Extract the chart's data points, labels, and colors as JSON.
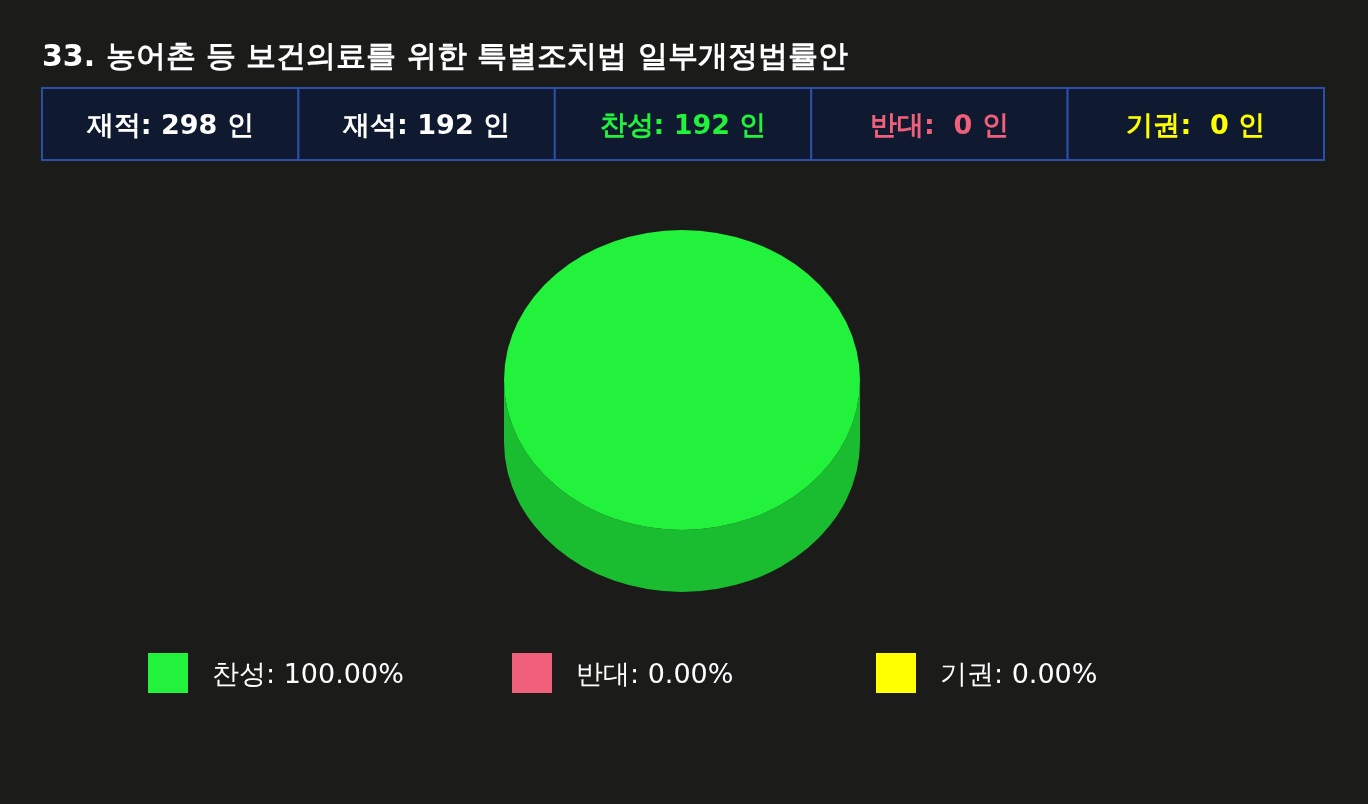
{
  "chart_data": {
    "type": "pie",
    "title": "33. 농어촌 등 보건의료를 위한 특별조치법 일부개정법률안",
    "categories": [
      "찬성",
      "반대",
      "기권"
    ],
    "values": [
      100,
      0,
      0
    ],
    "value_labels": [
      "100.00%",
      "0.00%",
      "0.00%"
    ],
    "colors": [
      "#22f23c",
      "#f0607a",
      "#ffff00"
    ],
    "legend": "bottom",
    "annotations": [
      "재적: 298 인",
      "재석: 192 인",
      "찬성: 192 인",
      "반대:  0 인",
      "기권:  0 인"
    ]
  }
}
